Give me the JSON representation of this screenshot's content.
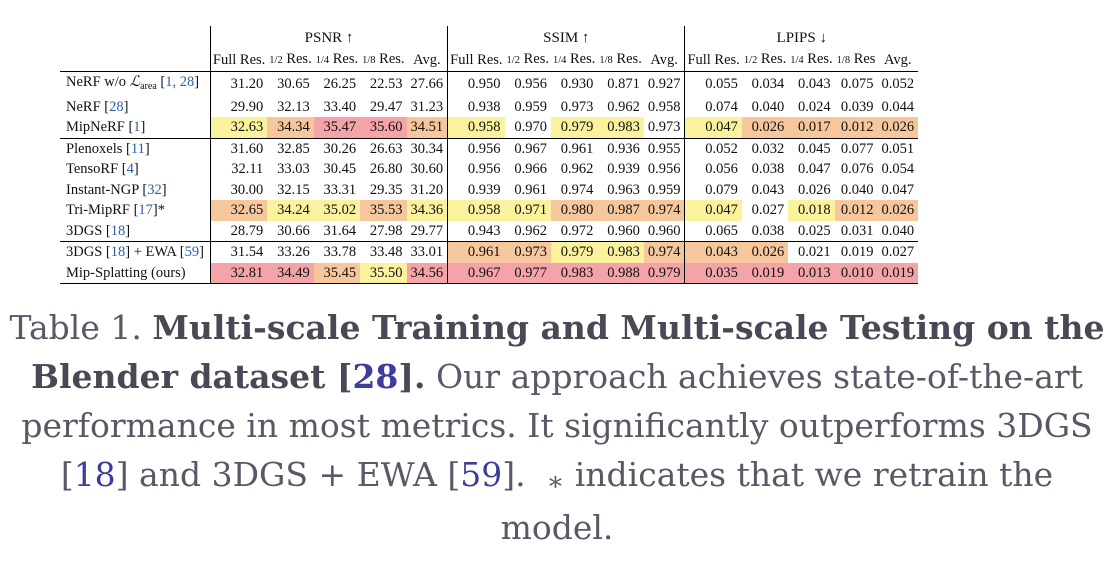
{
  "table": {
    "groups": [
      {
        "name": "PSNR",
        "arrow": "↑"
      },
      {
        "name": "SSIM",
        "arrow": "↑"
      },
      {
        "name": "LPIPS",
        "arrow": "↓"
      }
    ],
    "subheaders": [
      {
        "frac": "",
        "text": "Full Res."
      },
      {
        "frac": "1/2",
        "text": " Res."
      },
      {
        "frac": "1/4",
        "text": " Res."
      },
      {
        "frac": "1/8",
        "text": " Res."
      },
      {
        "frac": "",
        "text": "Avg."
      }
    ],
    "lpips_subheaders": [
      {
        "frac": "",
        "text": "Full Res."
      },
      {
        "frac": "1/2",
        "text": " Res."
      },
      {
        "frac": "1/4",
        "text": " Res."
      },
      {
        "frac": "1/8",
        "text": " Res"
      },
      {
        "frac": "",
        "text": "Avg."
      }
    ],
    "rows": [
      {
        "name": "NeRF w/o ",
        "loss": "ℒ",
        "loss_sub": "area",
        "refs": "1, 28",
        "suffix": "",
        "values": [
          "31.20",
          "30.65",
          "26.25",
          "22.53",
          "27.66",
          "0.950",
          "0.956",
          "0.930",
          "0.871",
          "0.927",
          "0.055",
          "0.034",
          "0.043",
          "0.075",
          "0.052"
        ],
        "ranks": [
          0,
          0,
          0,
          0,
          0,
          0,
          0,
          0,
          0,
          0,
          0,
          0,
          0,
          0,
          0
        ]
      },
      {
        "name": "NeRF ",
        "refs": "28",
        "suffix": "",
        "values": [
          "29.90",
          "32.13",
          "33.40",
          "29.47",
          "31.23",
          "0.938",
          "0.959",
          "0.973",
          "0.962",
          "0.958",
          "0.074",
          "0.040",
          "0.024",
          "0.039",
          "0.044"
        ],
        "ranks": [
          0,
          0,
          0,
          0,
          0,
          0,
          0,
          0,
          0,
          0,
          0,
          0,
          0,
          0,
          0
        ]
      },
      {
        "name": "MipNeRF ",
        "refs": "1",
        "suffix": "",
        "values": [
          "32.63",
          "34.34",
          "35.47",
          "35.60",
          "34.51",
          "0.958",
          "0.970",
          "0.979",
          "0.983",
          "0.973",
          "0.047",
          "0.026",
          "0.017",
          "0.012",
          "0.026"
        ],
        "ranks": [
          3,
          2,
          1,
          1,
          2,
          3,
          0,
          3,
          3,
          0,
          3,
          2,
          2,
          2,
          2
        ]
      },
      {
        "name": "Plenoxels ",
        "refs": "11",
        "suffix": "",
        "values": [
          "31.60",
          "32.85",
          "30.26",
          "26.63",
          "30.34",
          "0.956",
          "0.967",
          "0.961",
          "0.936",
          "0.955",
          "0.052",
          "0.032",
          "0.045",
          "0.077",
          "0.051"
        ],
        "ranks": [
          0,
          0,
          0,
          0,
          0,
          0,
          0,
          0,
          0,
          0,
          0,
          0,
          0,
          0,
          0
        ]
      },
      {
        "name": "TensoRF ",
        "refs": "4",
        "suffix": "",
        "values": [
          "32.11",
          "33.03",
          "30.45",
          "26.80",
          "30.60",
          "0.956",
          "0.966",
          "0.962",
          "0.939",
          "0.956",
          "0.056",
          "0.038",
          "0.047",
          "0.076",
          "0.054"
        ],
        "ranks": [
          0,
          0,
          0,
          0,
          0,
          0,
          0,
          0,
          0,
          0,
          0,
          0,
          0,
          0,
          0
        ]
      },
      {
        "name": "Instant-NGP ",
        "refs": "32",
        "suffix": "",
        "values": [
          "30.00",
          "32.15",
          "33.31",
          "29.35",
          "31.20",
          "0.939",
          "0.961",
          "0.974",
          "0.963",
          "0.959",
          "0.079",
          "0.043",
          "0.026",
          "0.040",
          "0.047"
        ],
        "ranks": [
          0,
          0,
          0,
          0,
          0,
          0,
          0,
          0,
          0,
          0,
          0,
          0,
          0,
          0,
          0
        ]
      },
      {
        "name": "Tri-MipRF ",
        "refs": "17",
        "suffix": "*",
        "values": [
          "32.65",
          "34.24",
          "35.02",
          "35.53",
          "34.36",
          "0.958",
          "0.971",
          "0.980",
          "0.987",
          "0.974",
          "0.047",
          "0.027",
          "0.018",
          "0.012",
          "0.026"
        ],
        "ranks": [
          2,
          3,
          3,
          2,
          3,
          3,
          3,
          2,
          2,
          2,
          3,
          0,
          3,
          2,
          2
        ]
      },
      {
        "name": "3DGS ",
        "refs": "18",
        "suffix": "",
        "values": [
          "28.79",
          "30.66",
          "31.64",
          "27.98",
          "29.77",
          "0.943",
          "0.962",
          "0.972",
          "0.960",
          "0.960",
          "0.065",
          "0.038",
          "0.025",
          "0.031",
          "0.040"
        ],
        "ranks": [
          0,
          0,
          0,
          0,
          0,
          0,
          0,
          0,
          0,
          0,
          0,
          0,
          0,
          0,
          0
        ]
      },
      {
        "name": "3DGS ",
        "refs": "18",
        "mid": "] + EWA [",
        "refs2": "59",
        "suffix": "",
        "values": [
          "31.54",
          "33.26",
          "33.78",
          "33.48",
          "33.01",
          "0.961",
          "0.973",
          "0.979",
          "0.983",
          "0.974",
          "0.043",
          "0.026",
          "0.021",
          "0.019",
          "0.027"
        ],
        "ranks": [
          0,
          0,
          0,
          0,
          0,
          2,
          2,
          3,
          3,
          2,
          2,
          2,
          0,
          0,
          0
        ]
      },
      {
        "name": "Mip-Splatting (ours)",
        "refs": "",
        "suffix": "",
        "values": [
          "32.81",
          "34.49",
          "35.45",
          "35.50",
          "34.56",
          "0.967",
          "0.977",
          "0.983",
          "0.988",
          "0.979",
          "0.035",
          "0.019",
          "0.013",
          "0.010",
          "0.019"
        ],
        "ranks": [
          1,
          1,
          2,
          3,
          1,
          1,
          1,
          1,
          1,
          1,
          1,
          1,
          1,
          1,
          1
        ]
      }
    ]
  },
  "caption": {
    "label": "Table 1.",
    "bold": "Multi-scale Training and Multi-scale Testing on the Blender dataset [",
    "bold_ref": "28",
    "bold_end": "].",
    "text1": "Our approach achieves state-of-the-art performance in most metrics. It significantly outperforms 3DGS [",
    "ref1": "18",
    "text2": "] and 3DGS + EWA [",
    "ref2": "59",
    "text3": "].",
    "star": "∗",
    "text4": "indicates that we retrain the model."
  },
  "colors": {
    "first": "#f4a3a8",
    "second": "#f6c79c",
    "third": "#fbf29e",
    "ref": "#2b5fa8"
  }
}
